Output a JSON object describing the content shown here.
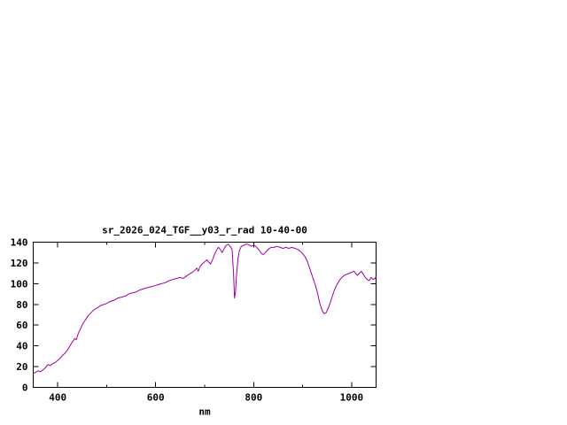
{
  "chart_data": {
    "type": "line",
    "title": "sr_2026_024_TGF__y03_r_rad 10-40-00",
    "xlabel": "nm",
    "ylabel": "",
    "xlim": [
      350,
      1050
    ],
    "ylim": [
      0,
      140
    ],
    "x_ticks_labeled": [
      400,
      600,
      800,
      1000
    ],
    "x_ticks_minor": [
      500,
      700,
      900
    ],
    "y_ticks": [
      0,
      20,
      40,
      60,
      80,
      100,
      120,
      140
    ],
    "grid": false,
    "legend": "none",
    "line_color": "#a000a0",
    "series": [
      {
        "name": "sr_2026_024_TGF__y03_r_rad",
        "points": [
          [
            350,
            13
          ],
          [
            356,
            15
          ],
          [
            360,
            16
          ],
          [
            365,
            15
          ],
          [
            370,
            17
          ],
          [
            375,
            19
          ],
          [
            380,
            22
          ],
          [
            385,
            21
          ],
          [
            390,
            23
          ],
          [
            395,
            24
          ],
          [
            400,
            26
          ],
          [
            405,
            28
          ],
          [
            410,
            31
          ],
          [
            415,
            33
          ],
          [
            420,
            36
          ],
          [
            425,
            40
          ],
          [
            430,
            44
          ],
          [
            435,
            47
          ],
          [
            438,
            46
          ],
          [
            442,
            52
          ],
          [
            448,
            58
          ],
          [
            452,
            62
          ],
          [
            458,
            66
          ],
          [
            462,
            69
          ],
          [
            468,
            72
          ],
          [
            472,
            74
          ],
          [
            478,
            76
          ],
          [
            482,
            77
          ],
          [
            488,
            79
          ],
          [
            495,
            80
          ],
          [
            500,
            81
          ],
          [
            508,
            83
          ],
          [
            515,
            84
          ],
          [
            522,
            86
          ],
          [
            530,
            87
          ],
          [
            538,
            88
          ],
          [
            545,
            90
          ],
          [
            552,
            91
          ],
          [
            560,
            92
          ],
          [
            568,
            94
          ],
          [
            575,
            95
          ],
          [
            582,
            96
          ],
          [
            590,
            97
          ],
          [
            598,
            98
          ],
          [
            605,
            99
          ],
          [
            612,
            100
          ],
          [
            620,
            101
          ],
          [
            628,
            103
          ],
          [
            635,
            104
          ],
          [
            642,
            105
          ],
          [
            650,
            106
          ],
          [
            656,
            105
          ],
          [
            662,
            107
          ],
          [
            668,
            109
          ],
          [
            675,
            111
          ],
          [
            680,
            113
          ],
          [
            684,
            115
          ],
          [
            687,
            112
          ],
          [
            690,
            116
          ],
          [
            695,
            119
          ],
          [
            700,
            121
          ],
          [
            705,
            123
          ],
          [
            708,
            121
          ],
          [
            712,
            119
          ],
          [
            716,
            123
          ],
          [
            720,
            128
          ],
          [
            724,
            132
          ],
          [
            728,
            135
          ],
          [
            732,
            133
          ],
          [
            736,
            130
          ],
          [
            740,
            134
          ],
          [
            744,
            137
          ],
          [
            748,
            138
          ],
          [
            752,
            136
          ],
          [
            756,
            133
          ],
          [
            759,
            110
          ],
          [
            761,
            86
          ],
          [
            763,
            92
          ],
          [
            765,
            108
          ],
          [
            768,
            124
          ],
          [
            771,
            132
          ],
          [
            775,
            136
          ],
          [
            780,
            137
          ],
          [
            784,
            138
          ],
          [
            788,
            138
          ],
          [
            792,
            137
          ],
          [
            796,
            136
          ],
          [
            800,
            137
          ],
          [
            804,
            136
          ],
          [
            808,
            134
          ],
          [
            812,
            132
          ],
          [
            816,
            129
          ],
          [
            820,
            128
          ],
          [
            824,
            130
          ],
          [
            828,
            132
          ],
          [
            832,
            134
          ],
          [
            836,
            135
          ],
          [
            842,
            135
          ],
          [
            848,
            136
          ],
          [
            854,
            135
          ],
          [
            860,
            134
          ],
          [
            866,
            135
          ],
          [
            872,
            134
          ],
          [
            878,
            135
          ],
          [
            884,
            134
          ],
          [
            890,
            133
          ],
          [
            896,
            131
          ],
          [
            900,
            129
          ],
          [
            905,
            126
          ],
          [
            910,
            121
          ],
          [
            915,
            114
          ],
          [
            920,
            107
          ],
          [
            925,
            100
          ],
          [
            930,
            92
          ],
          [
            935,
            81
          ],
          [
            940,
            74
          ],
          [
            944,
            71
          ],
          [
            948,
            72
          ],
          [
            952,
            76
          ],
          [
            956,
            81
          ],
          [
            960,
            87
          ],
          [
            965,
            94
          ],
          [
            970,
            99
          ],
          [
            975,
            103
          ],
          [
            980,
            106
          ],
          [
            985,
            108
          ],
          [
            990,
            109
          ],
          [
            995,
            110
          ],
          [
            1000,
            111
          ],
          [
            1005,
            112
          ],
          [
            1008,
            110
          ],
          [
            1012,
            108
          ],
          [
            1016,
            110
          ],
          [
            1020,
            112
          ],
          [
            1024,
            109
          ],
          [
            1028,
            106
          ],
          [
            1032,
            104
          ],
          [
            1036,
            103
          ],
          [
            1040,
            106
          ],
          [
            1044,
            104
          ],
          [
            1048,
            105
          ],
          [
            1050,
            107
          ]
        ]
      }
    ]
  }
}
